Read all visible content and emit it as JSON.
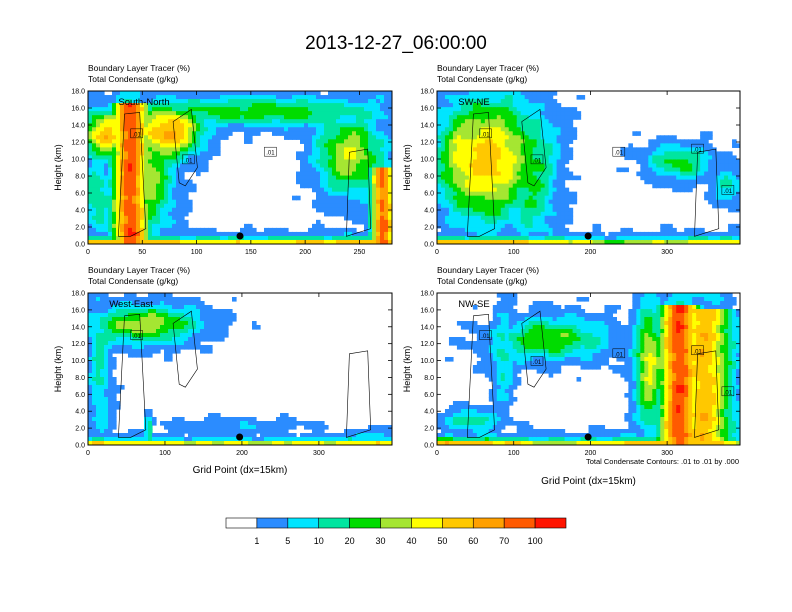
{
  "figure": {
    "title": "2013-12-27_06:00:00",
    "contour_note": "Total Condensate Contours: .01 to .01 by .000",
    "colorbar": {
      "levels": [
        "1",
        "5",
        "10",
        "20",
        "30",
        "40",
        "50",
        "60",
        "70",
        "100"
      ],
      "colors": [
        "#ffffff",
        "#2b8cff",
        "#00e5ff",
        "#00e5a0",
        "#00dc00",
        "#a5e632",
        "#ffff00",
        "#ffc800",
        "#ffa000",
        "#ff5a00",
        "#ff1400"
      ]
    }
  },
  "chart_data": [
    {
      "type": "heatmap",
      "panel_label": "South-North",
      "title_line1": "Boundary Layer Tracer    (%)",
      "title_line2": "Total Condensate    (g/kg)",
      "ylabel": "Height (km)",
      "xlabel": "",
      "ylim": [
        0,
        18
      ],
      "yticks": [
        "0.0",
        "2.0",
        "4.0",
        "6.0",
        "8.0",
        "10.0",
        "12.0",
        "14.0",
        "16.0",
        "18.0"
      ],
      "xlim": [
        0,
        280
      ],
      "xticks": [
        0,
        50,
        100,
        150,
        200,
        250
      ],
      "contour_labels": [
        ".01",
        ".01",
        ".01"
      ],
      "marker_x": 140
    },
    {
      "type": "heatmap",
      "panel_label": "SW-NE",
      "title_line1": "Boundary Layer Tracer    (%)",
      "title_line2": "Total Condensate    (g/kg)",
      "ylabel": "Height (km)",
      "xlabel": "",
      "ylim": [
        0,
        18
      ],
      "yticks": [
        "0.0",
        "2.0",
        "4.0",
        "6.0",
        "8.0",
        "10.0",
        "12.0",
        "14.0",
        "16.0",
        "18.0"
      ],
      "xlim": [
        0,
        395
      ],
      "xticks": [
        0,
        100,
        200,
        300
      ],
      "contour_labels": [
        ".01",
        ".01",
        ".01",
        ".01",
        ".01"
      ],
      "marker_x": 197
    },
    {
      "type": "heatmap",
      "panel_label": "West-East",
      "title_line1": "Boundary Layer Tracer    (%)",
      "title_line2": "Total Condensate    (g/kg)",
      "ylabel": "Height (km)",
      "xlabel": "Grid Point (dx=15km)",
      "ylim": [
        0,
        18
      ],
      "yticks": [
        "0.0",
        "2.0",
        "4.0",
        "6.0",
        "8.0",
        "10.0",
        "12.0",
        "14.0",
        "16.0",
        "18.0"
      ],
      "xlim": [
        0,
        395
      ],
      "xticks": [
        0,
        100,
        200,
        300
      ],
      "contour_labels": [
        ".01"
      ],
      "marker_x": 197
    },
    {
      "type": "heatmap",
      "panel_label": "NW-SE",
      "title_line1": "Boundary Layer Tracer    (%)",
      "title_line2": "Total Condensate    (g/kg)",
      "ylabel": "Height (km)",
      "xlabel": "Grid Point (dx=15km)",
      "ylim": [
        0,
        18
      ],
      "yticks": [
        "0.0",
        "2.0",
        "4.0",
        "6.0",
        "8.0",
        "10.0",
        "12.0",
        "14.0",
        "16.0",
        "18.0"
      ],
      "xlim": [
        0,
        395
      ],
      "xticks": [
        0,
        100,
        200,
        300
      ],
      "contour_labels": [
        ".01",
        ".01",
        ".01",
        ".01",
        ".01"
      ],
      "marker_x": 197
    }
  ]
}
